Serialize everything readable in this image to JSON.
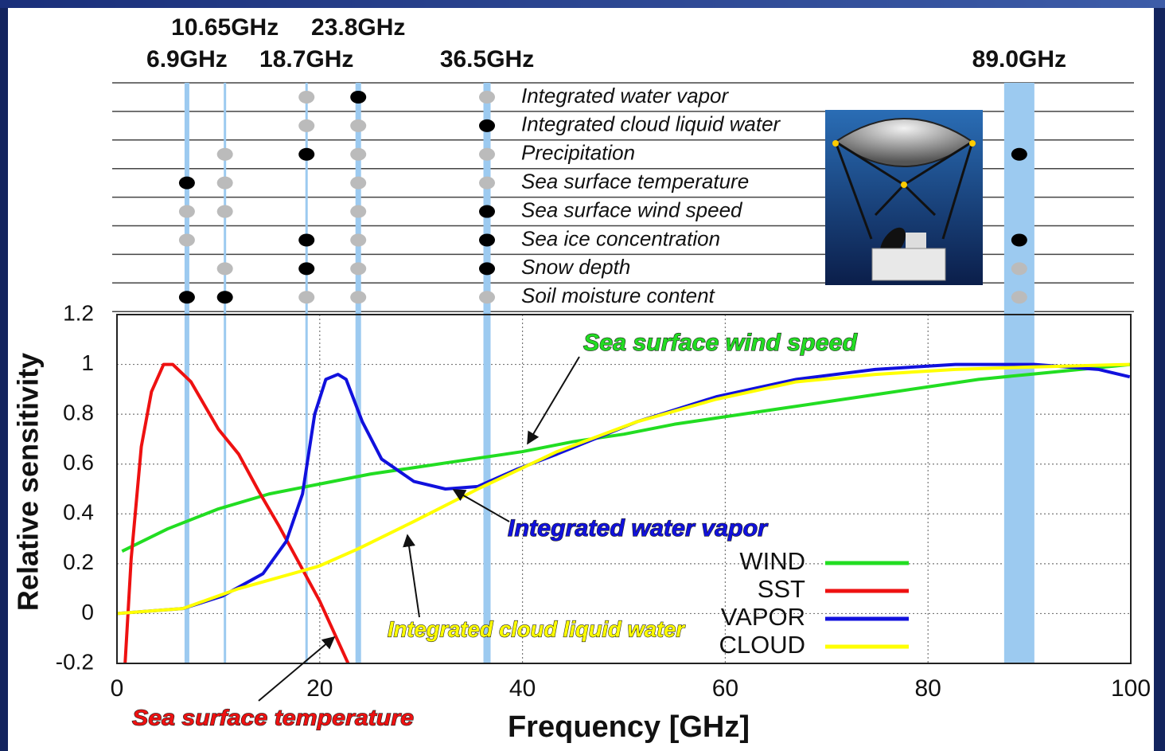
{
  "chart_data": {
    "type": "line",
    "xlabel": "Frequency [GHz]",
    "ylabel": "Relative sensitivity",
    "xlim": [
      0,
      100
    ],
    "ylim": [
      -0.2,
      1.2
    ],
    "xticks": [
      0,
      20,
      40,
      60,
      80,
      100
    ],
    "yticks": [
      -0.2,
      0,
      0.2,
      0.4,
      0.6,
      0.8,
      1,
      1.2
    ],
    "grid": true,
    "legend": "lower right",
    "series": [
      {
        "name": "WIND",
        "color": "#22dd22",
        "x": [
          0.5,
          5,
          10,
          15,
          20,
          25,
          30,
          35,
          40,
          45,
          50,
          55,
          60,
          65,
          70,
          75,
          80,
          85,
          90,
          95,
          100
        ],
        "values": [
          0.25,
          0.34,
          0.42,
          0.48,
          0.52,
          0.56,
          0.59,
          0.62,
          0.65,
          0.69,
          0.72,
          0.76,
          0.79,
          0.82,
          0.85,
          0.88,
          0.91,
          0.94,
          0.96,
          0.98,
          1.0
        ]
      },
      {
        "name": "SST",
        "color": "#ee1111",
        "x": [
          0.8,
          1.4,
          2.4,
          3.4,
          4.6,
          5.5,
          7.3,
          10,
          12,
          14,
          16,
          18,
          20,
          22.8
        ],
        "values": [
          -0.2,
          0.22,
          0.67,
          0.89,
          1.0,
          1.0,
          0.93,
          0.74,
          0.64,
          0.49,
          0.35,
          0.2,
          0.05,
          -0.2
        ]
      },
      {
        "name": "VAPOR",
        "color": "#1111dd",
        "x": [
          0,
          6.5,
          10.4,
          14.4,
          16.7,
          18.3,
          19.5,
          20.6,
          21.8,
          22.6,
          24.2,
          26.1,
          29.3,
          32.4,
          35.6,
          39.5,
          43.4,
          51.3,
          59.1,
          67,
          74.8,
          82.7,
          90.5,
          96.8,
          99.9
        ],
        "values": [
          0,
          0.02,
          0.07,
          0.16,
          0.29,
          0.48,
          0.8,
          0.94,
          0.96,
          0.94,
          0.77,
          0.62,
          0.53,
          0.5,
          0.51,
          0.58,
          0.64,
          0.77,
          0.87,
          0.94,
          0.98,
          1.0,
          1.0,
          0.98,
          0.95
        ]
      },
      {
        "name": "CLOUD",
        "color": "#ffff00",
        "x": [
          0,
          6.5,
          12,
          19.9,
          23.8,
          29.3,
          35.6,
          43.4,
          51.3,
          59.1,
          67,
          74.8,
          82.7,
          90.5,
          99.9
        ],
        "values": [
          0,
          0.02,
          0.1,
          0.19,
          0.26,
          0.37,
          0.5,
          0.65,
          0.77,
          0.86,
          0.93,
          0.96,
          0.98,
          0.99,
          1.0
        ]
      }
    ],
    "annotations": [
      {
        "text": "Sea surface wind speed",
        "color": "#22dd22"
      },
      {
        "text": "Integrated water vapor",
        "color": "#1111dd"
      },
      {
        "text": "Integrated cloud liquid water",
        "color": "#ffff00"
      },
      {
        "text": "Sea surface temperature",
        "color": "#ee1111"
      }
    ],
    "channels": [
      {
        "value": 6.9,
        "label": "6.9GHz"
      },
      {
        "value": 10.65,
        "label": "10.65GHz"
      },
      {
        "value": 18.7,
        "label": "18.7GHz"
      },
      {
        "value": 23.8,
        "label": "23.8GHz"
      },
      {
        "value": 36.5,
        "label": "36.5GHz"
      },
      {
        "value": 89,
        "label": "89.0GHz"
      }
    ],
    "channel_color": "#9ccaf0",
    "parameters": [
      {
        "name": "Integrated water vapor",
        "dots": [
          null,
          null,
          "#bbbbbb",
          "#000000",
          "#bbbbbb",
          null
        ]
      },
      {
        "name": "Integrated cloud liquid water",
        "dots": [
          null,
          null,
          "#bbbbbb",
          "#bbbbbb",
          "#000000",
          null
        ]
      },
      {
        "name": "Precipitation",
        "dots": [
          null,
          "#bbbbbb",
          "#000000",
          "#bbbbbb",
          "#bbbbbb",
          "#000000"
        ]
      },
      {
        "name": "Sea surface temperature",
        "dots": [
          "#000000",
          "#bbbbbb",
          null,
          "#bbbbbb",
          "#bbbbbb",
          null
        ]
      },
      {
        "name": "Sea surface wind speed",
        "dots": [
          "#bbbbbb",
          "#bbbbbb",
          null,
          "#bbbbbb",
          "#000000",
          null
        ]
      },
      {
        "name": "Sea ice concentration",
        "dots": [
          "#bbbbbb",
          null,
          "#000000",
          "#bbbbbb",
          "#000000",
          "#000000"
        ]
      },
      {
        "name": "Snow depth",
        "dots": [
          null,
          "#bbbbbb",
          "#000000",
          "#bbbbbb",
          "#000000",
          "#bbbbbb"
        ]
      },
      {
        "name": "Soil moisture content",
        "dots": [
          "#000000",
          "#000000",
          "#bbbbbb",
          "#bbbbbb",
          "#bbbbbb",
          "#bbbbbb"
        ]
      }
    ]
  }
}
